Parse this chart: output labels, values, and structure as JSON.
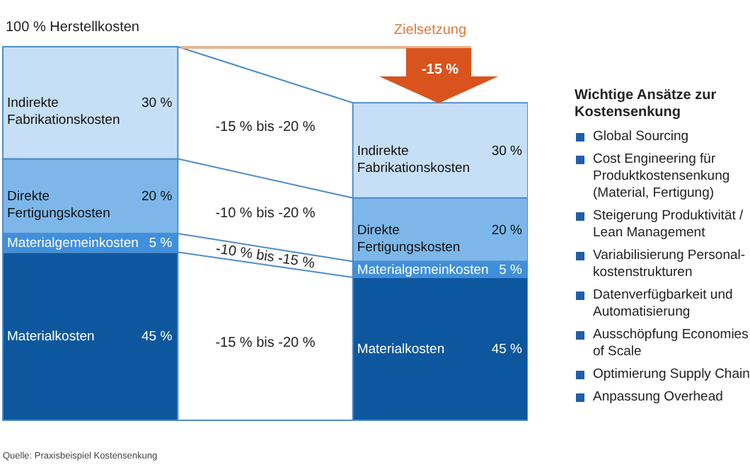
{
  "chart_data": {
    "type": "bar",
    "stacked": true,
    "legend": false,
    "categories": [
      "100 % Herstellkosten",
      null
    ],
    "series": [
      {
        "name": "Materialkosten",
        "color": "#0d579f",
        "values": [
          45,
          38.25
        ],
        "value_labels": [
          "45 %",
          null
        ]
      },
      {
        "name": "Materialgemeinkosten",
        "color": "#3f8fdd",
        "values": [
          5,
          4.25
        ],
        "value_labels": [
          "5 %",
          null
        ]
      },
      {
        "name": "Direkte Fertigungskosten",
        "color": "#7db7ea",
        "values": [
          20,
          17
        ],
        "value_labels": [
          "20 %",
          null
        ]
      },
      {
        "name": "Indirekte Fabrikationskosten",
        "color": "#c6dff7",
        "values": [
          30,
          25.5
        ],
        "value_labels": [
          "30 %",
          null
        ]
      }
    ],
    "annotations": [
      "-15 % bis -20 %",
      "-10 % bis -15 %",
      "-10 % bis -20 %",
      "-15 % bis -20 %",
      "45 %",
      "5 %",
      "20 %",
      "30 %",
      "Zielsetzung",
      "-15 %",
      "Wichtige Ansätze zur Kostensenkung",
      "Global Sourcing",
      "Cost Engineering für Produktkostensenkung (Material, Fertigung)",
      "Steigerung Produktivität / Lean Management",
      "Variabilisierung Personal-kostenstrukturen",
      "Datenverfügbarkeit und Automatisierung",
      "Ausschöpfung Economies of Scale",
      "Optimierung Supply Chain",
      "Anpassung Overhead",
      "Quelle: Praxisbeispiel Kostensenkung"
    ]
  }
}
